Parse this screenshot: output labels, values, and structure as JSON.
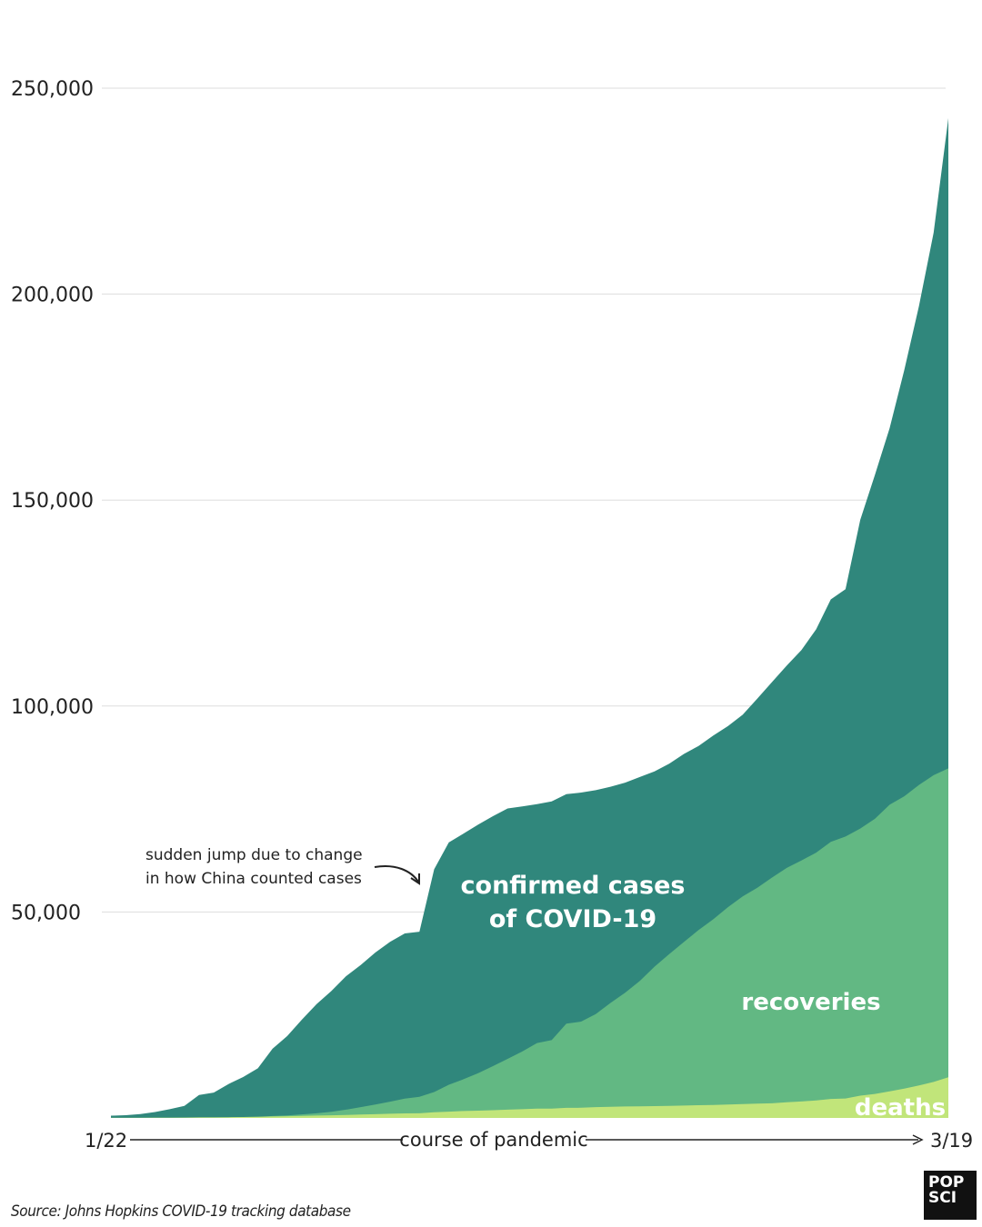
{
  "chart_data": {
    "type": "area",
    "stacked": false,
    "y_ticks": [
      "250,000",
      "200,000",
      "150,000",
      "100,000",
      "50,000"
    ],
    "y_tick_values": [
      250000,
      200000,
      150000,
      100000,
      50000
    ],
    "ylim": [
      0,
      250000
    ],
    "grid": true,
    "x_start_label": "1/22",
    "x_end_label": "3/19",
    "x_axis_label": "course of pandemic",
    "num_days": 58,
    "series": [
      {
        "name": "confirmed cases of COVID-19",
        "label_lines": [
          "confirmed cases",
          "of COVID-19"
        ],
        "color": "#30877c",
        "values": [
          555,
          654,
          941,
          1434,
          2118,
          2927,
          5578,
          6166,
          8234,
          9927,
          12038,
          16787,
          19881,
          23892,
          27635,
          30794,
          34391,
          37120,
          40150,
          42762,
          44802,
          45221,
          60368,
          66885,
          69032,
          71226,
          73260,
          75138,
          75641,
          76199,
          76843,
          78599,
          78985,
          79570,
          80415,
          81397,
          82756,
          84124,
          86013,
          88371,
          90309,
          92844,
          95124,
          97886,
          101800,
          105836,
          109835,
          113590,
          118620,
          125875,
          128352,
          145193,
          156094,
          167446,
          181527,
          197142,
          214910,
          242708
        ]
      },
      {
        "name": "recoveries",
        "label_lines": [
          "recoveries"
        ],
        "color": "#62b883",
        "values": [
          28,
          30,
          36,
          39,
          52,
          61,
          107,
          126,
          143,
          222,
          284,
          472,
          623,
          852,
          1124,
          1487,
          2011,
          2616,
          3244,
          3946,
          4683,
          5150,
          6295,
          8058,
          9395,
          10865,
          12583,
          14352,
          16121,
          18177,
          18890,
          22886,
          23394,
          25227,
          27905,
          30384,
          33277,
          36711,
          39782,
          42716,
          45602,
          48228,
          51170,
          53796,
          55865,
          58358,
          60694,
          62494,
          64404,
          67003,
          68324,
          70251,
          72624,
          76034,
          78088,
          80840,
          83207,
          84854
        ]
      },
      {
        "name": "deaths",
        "label_lines": [
          "deaths"
        ],
        "color": "#c1e57a",
        "values": [
          17,
          18,
          26,
          42,
          56,
          82,
          131,
          133,
          171,
          213,
          259,
          362,
          426,
          492,
          564,
          634,
          719,
          806,
          906,
          1013,
          1113,
          1118,
          1371,
          1523,
          1666,
          1770,
          1868,
          2007,
          2122,
          2247,
          2251,
          2458,
          2469,
          2629,
          2708,
          2770,
          2814,
          2872,
          2941,
          2996,
          3085,
          3160,
          3254,
          3348,
          3460,
          3558,
          3802,
          3988,
          4262,
          4615,
          4720,
          5404,
          5819,
          6440,
          7126,
          7905,
          8733,
          9867
        ]
      }
    ],
    "annotations": [
      {
        "text_lines": [
          "sudden jump due to change",
          "in how China counted cases"
        ]
      }
    ]
  },
  "source": "Source: Johns Hopkins COVID-19 tracking database",
  "logo": {
    "line1": "POP",
    "line2": "SCI"
  },
  "colors": {
    "grid": "#dddddd",
    "text": "#222222",
    "background": "#ffffff"
  }
}
